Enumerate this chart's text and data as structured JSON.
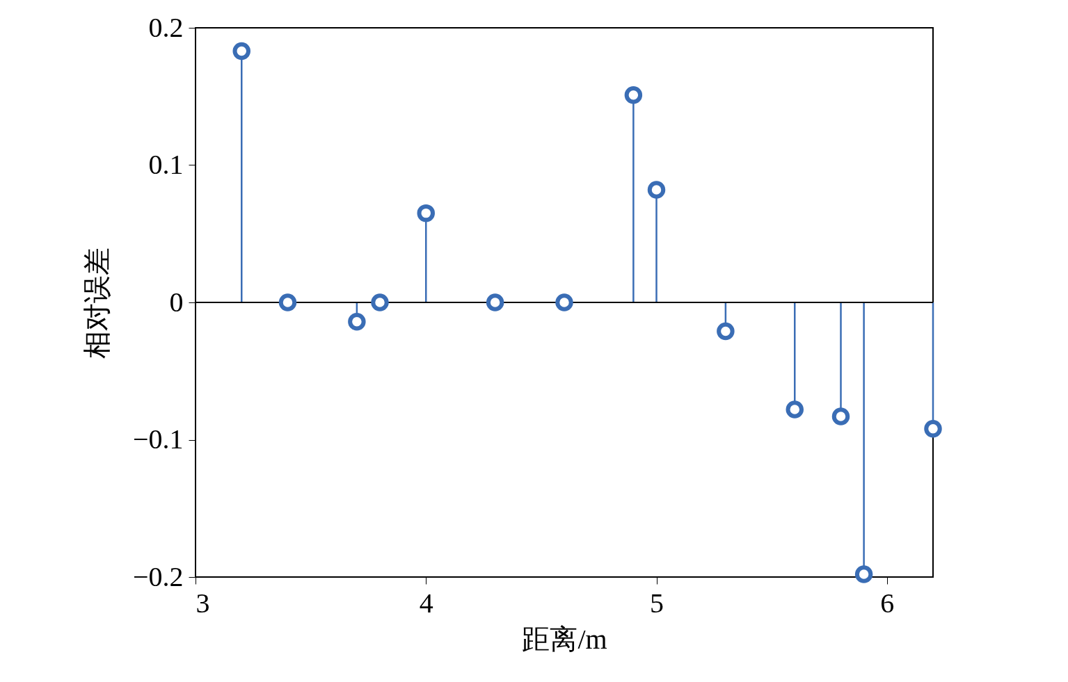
{
  "chart_data": {
    "type": "lollipop",
    "xlabel": "距离/m",
    "ylabel": "相对误差",
    "x": [
      3.2,
      3.4,
      3.7,
      3.8,
      4.0,
      4.3,
      4.6,
      4.9,
      5.0,
      5.3,
      5.6,
      5.8,
      5.9,
      6.2
    ],
    "series": [
      {
        "color": "#3a6db5",
        "values": [
          0.183,
          0,
          -0.014,
          0,
          0.065,
          0,
          0,
          0.151,
          0.082,
          -0.021,
          -0.078,
          -0.083,
          -0.198,
          -0.092
        ]
      }
    ],
    "xlim": [
      3,
      6.2
    ],
    "xticks": [
      3,
      4,
      5,
      6
    ],
    "ylim": [
      -0.2,
      0.2
    ],
    "yticks": [
      {
        "value": -0.2,
        "label": "−0.2"
      },
      {
        "value": -0.1,
        "label": "−0.1"
      },
      0,
      0.1,
      0.2
    ],
    "ref_lines": [
      {
        "axis": "y",
        "value": 0,
        "color": "#000000"
      }
    ],
    "marker": "circle",
    "grid": false
  }
}
